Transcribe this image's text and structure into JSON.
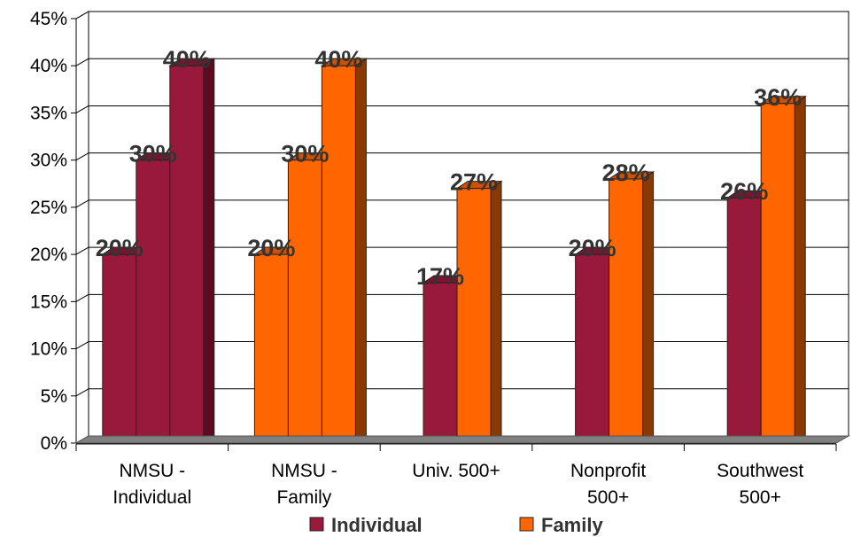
{
  "chart_data": {
    "type": "bar",
    "categories": [
      [
        "NMSU -",
        "Individual"
      ],
      [
        "NMSU -",
        "Family"
      ],
      [
        "Univ. 500+"
      ],
      [
        "Nonprofit",
        "500+"
      ],
      [
        "Southwest",
        "500+"
      ]
    ],
    "bar_groups": [
      [
        {
          "value": 20,
          "label": "20%",
          "series": 0
        },
        {
          "value": 30,
          "label": "30%",
          "series": 0
        },
        {
          "value": 40,
          "label": "40%",
          "series": 0
        }
      ],
      [
        {
          "value": 20,
          "label": "20%",
          "series": 1
        },
        {
          "value": 30,
          "label": "30%",
          "series": 1
        },
        {
          "value": 40,
          "label": "40%",
          "series": 1
        }
      ],
      [
        {
          "value": 17,
          "label": "17%",
          "series": 0
        },
        {
          "value": 27,
          "label": "27%",
          "series": 1
        }
      ],
      [
        {
          "value": 20,
          "label": "20%",
          "series": 0
        },
        {
          "value": 28,
          "label": "28%",
          "series": 1
        }
      ],
      [
        {
          "value": 26,
          "label": "26%",
          "series": 0
        },
        {
          "value": 36,
          "label": "36%",
          "series": 1
        }
      ]
    ],
    "series": [
      {
        "name": "Individual",
        "color": "#99193a",
        "side_color": "#5a0d20",
        "top_color": "#7a1430"
      },
      {
        "name": "Family",
        "color": "#ff6600",
        "side_color": "#8a3a00",
        "top_color": "#cc5200"
      }
    ],
    "y_ticks": [
      "0%",
      "5%",
      "10%",
      "15%",
      "20%",
      "25%",
      "30%",
      "35%",
      "40%",
      "45%"
    ],
    "ylim": [
      0,
      45
    ],
    "grid": true,
    "legend_position": "bottom"
  }
}
